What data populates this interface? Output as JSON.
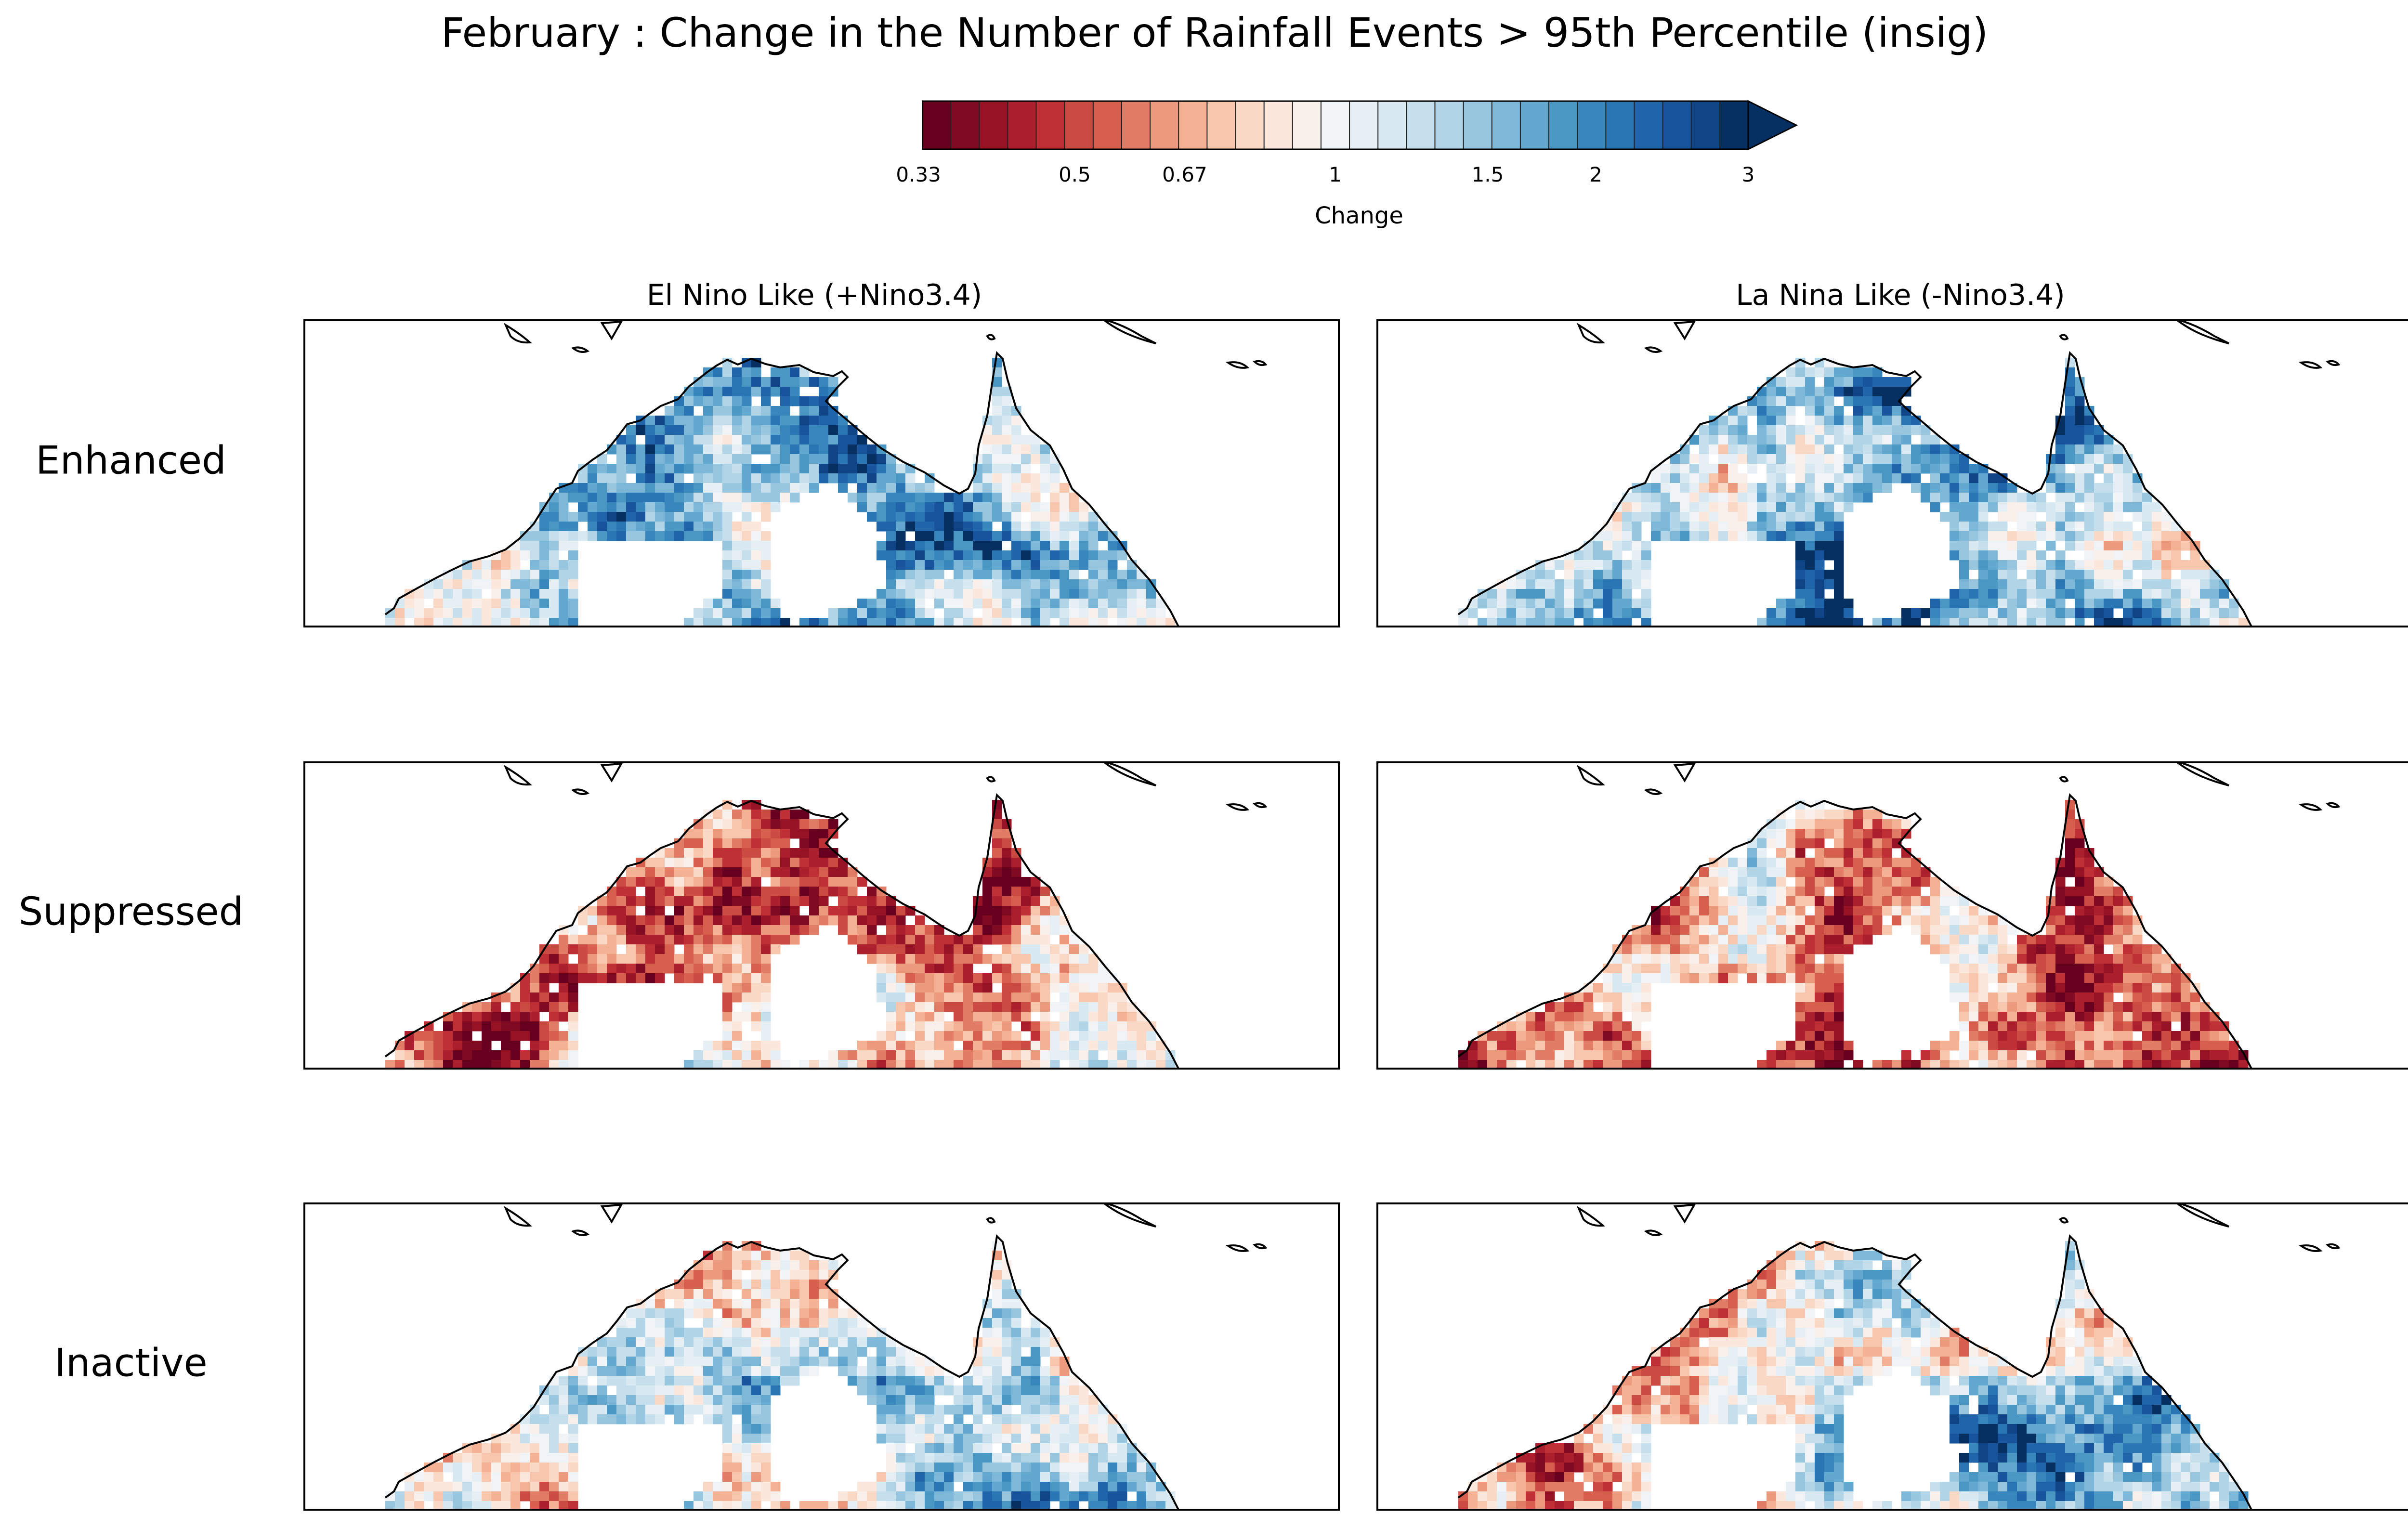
{
  "title": "February : Change in the Number of Rainfall Events > 95th Percentile (insig)",
  "colorbar": {
    "label": "Change",
    "ticks": [
      "0.33",
      "0.5",
      "0.67",
      "1",
      "1.5",
      "2",
      "3"
    ],
    "colors": [
      "#67001f",
      "#7f0a22",
      "#961326",
      "#ac1f2d",
      "#be3036",
      "#cb4a42",
      "#d6604d",
      "#e17d67",
      "#eb9a7e",
      "#f4b194",
      "#f7c6ad",
      "#fad8c6",
      "#fce7dc",
      "#f9f0eb",
      "#f1f4f6",
      "#e6eff4",
      "#d8e9f1",
      "#c6dfec",
      "#b1d4e6",
      "#98c6df",
      "#7db8d8",
      "#62a8cf",
      "#4b97c4",
      "#3887bc",
      "#2a75b3",
      "#2064a9",
      "#18549b",
      "#0f4586",
      "#053061"
    ],
    "extend": "max",
    "scale": "log"
  },
  "columns": [
    "El Nino Like (+Nino3.4)",
    "La Nina Like (-Nino3.4)"
  ],
  "rows": [
    "Enhanced",
    "Suppressed",
    "Inactive"
  ],
  "map_data": {
    "type": "gridded-ratio-map",
    "region": "Northern Australia",
    "panels": [
      {
        "row": "Enhanced",
        "column": "El Nino Like (+Nino3.4)",
        "dominant": "increase"
      },
      {
        "row": "Enhanced",
        "column": "La Nina Like (-Nino3.4)",
        "dominant": "increase"
      },
      {
        "row": "Suppressed",
        "column": "El Nino Like (+Nino3.4)",
        "dominant": "decrease"
      },
      {
        "row": "Suppressed",
        "column": "La Nina Like (-Nino3.4)",
        "dominant": "decrease"
      },
      {
        "row": "Inactive",
        "column": "El Nino Like (+Nino3.4)",
        "dominant": "mixed"
      },
      {
        "row": "Inactive",
        "column": "La Nina Like (-Nino3.4)",
        "dominant": "mixed"
      }
    ]
  }
}
